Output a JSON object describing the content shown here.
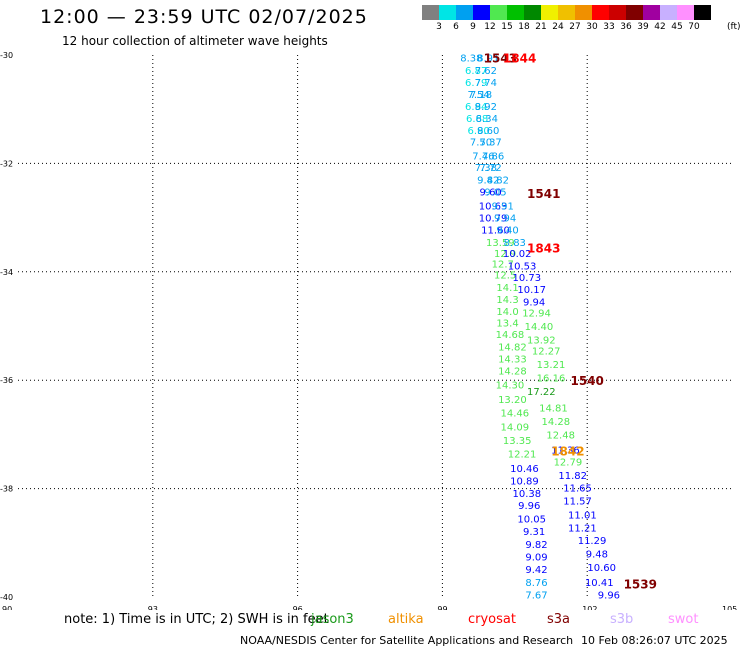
{
  "header": {
    "title": "12:00 — 23:59 UTC 02/07/2025",
    "subtitle": "12 hour collection of altimeter wave heights"
  },
  "color_scale": {
    "unit": "(ft)",
    "items": [
      {
        "label": "3",
        "color": "#808080"
      },
      {
        "label": "6",
        "color": "#00e5e5"
      },
      {
        "label": "9",
        "color": "#00a0f0"
      },
      {
        "label": "12",
        "color": "#0000ff"
      },
      {
        "label": "15",
        "color": "#50e850"
      },
      {
        "label": "18",
        "color": "#00c000"
      },
      {
        "label": "21",
        "color": "#008800"
      },
      {
        "label": "24",
        "color": "#f0f000"
      },
      {
        "label": "27",
        "color": "#f0c000"
      },
      {
        "label": "30",
        "color": "#f09000"
      },
      {
        "label": "33",
        "color": "#ff0000"
      },
      {
        "label": "36",
        "color": "#cc0000"
      },
      {
        "label": "39",
        "color": "#800000"
      },
      {
        "label": "42",
        "color": "#a000a0"
      },
      {
        "label": "45",
        "color": "#c8b0ff"
      },
      {
        "label": "70",
        "color": "#ff90ff"
      },
      {
        "label": "",
        "color": "#000000"
      }
    ]
  },
  "note": "note: 1) Time is in UTC; 2) SWH is in feet",
  "satellites": [
    {
      "name": "jason3",
      "color": "#1a9a1a"
    },
    {
      "name": "altika",
      "color": "#f09000"
    },
    {
      "name": "cryosat",
      "color": "#ff0000"
    },
    {
      "name": "s3a",
      "color": "#800000"
    },
    {
      "name": "s3b",
      "color": "#c8b0ff"
    },
    {
      "name": "swot",
      "color": "#ff90ff"
    }
  ],
  "footer": {
    "credit": "NOAA/NESDIS Center for Satellite Applications and Research",
    "generated": "10 Feb 08:26:07 UTC 2025"
  },
  "chart_data": {
    "type": "scatter",
    "title": "12:00 — 23:59 UTC 02/07/2025",
    "subtitle": "12 hour collection of altimeter wave heights",
    "xlabel": "",
    "ylabel": "",
    "xlim": [
      90,
      105
    ],
    "ylim": [
      -40,
      -30
    ],
    "x_ticks": [
      90,
      93,
      96,
      99,
      102,
      105
    ],
    "y_ticks": [
      -30,
      -32,
      -34,
      -36,
      -38,
      -40
    ],
    "grid": true,
    "time_labels": [
      {
        "text": "1543",
        "x": 100.2,
        "y": -30.05,
        "color": "#800000"
      },
      {
        "text": "1844",
        "x": 100.6,
        "y": -30.05,
        "color": "#ff0000"
      },
      {
        "text": "1541",
        "x": 101.1,
        "y": -32.55,
        "color": "#800000"
      },
      {
        "text": "1843",
        "x": 101.1,
        "y": -33.55,
        "color": "#ff0000"
      },
      {
        "text": "1540",
        "x": 102.0,
        "y": -36.0,
        "color": "#800000"
      },
      {
        "text": "1842",
        "x": 101.6,
        "y": -37.3,
        "color": "#f09000"
      },
      {
        "text": "1539",
        "x": 103.1,
        "y": -39.75,
        "color": "#800000"
      }
    ],
    "series": [
      {
        "name": "jason3",
        "values": [
          {
            "x": 99.6,
            "y": -30.05,
            "v": "8.38",
            "c": "#00a0f0"
          },
          {
            "x": 99.95,
            "y": -30.05,
            "v": "8.91",
            "c": "#00a0f0"
          },
          {
            "x": 99.7,
            "y": -30.28,
            "v": "6.87",
            "c": "#00e5e5"
          },
          {
            "x": 99.9,
            "y": -30.28,
            "v": "7.62",
            "c": "#00a0f0"
          },
          {
            "x": 99.7,
            "y": -30.5,
            "v": "6.79",
            "c": "#00e5e5"
          },
          {
            "x": 99.9,
            "y": -30.5,
            "v": "7.74",
            "c": "#00a0f0"
          },
          {
            "x": 99.75,
            "y": -30.72,
            "v": "7.54",
            "c": "#00a0f0"
          },
          {
            "x": 99.8,
            "y": -30.72,
            "v": "7.18",
            "c": "#00a0f0"
          },
          {
            "x": 99.7,
            "y": -30.94,
            "v": "6.94",
            "c": "#00e5e5"
          },
          {
            "x": 99.9,
            "y": -30.94,
            "v": "8.92",
            "c": "#00a0f0"
          },
          {
            "x": 99.72,
            "y": -31.16,
            "v": "6.68",
            "c": "#00e5e5"
          },
          {
            "x": 99.92,
            "y": -31.16,
            "v": "8.34",
            "c": "#00a0f0"
          },
          {
            "x": 99.75,
            "y": -31.38,
            "v": "6.90",
            "c": "#00e5e5"
          },
          {
            "x": 99.95,
            "y": -31.38,
            "v": "8.60",
            "c": "#00a0f0"
          },
          {
            "x": 99.8,
            "y": -31.6,
            "v": "7.50",
            "c": "#00a0f0"
          },
          {
            "x": 100.0,
            "y": -31.6,
            "v": "7.37",
            "c": "#00a0f0"
          },
          {
            "x": 99.85,
            "y": -31.85,
            "v": "7.46",
            "c": "#00a0f0"
          },
          {
            "x": 100.05,
            "y": -31.85,
            "v": "7.86",
            "c": "#00a0f0"
          },
          {
            "x": 99.9,
            "y": -32.07,
            "v": "7.38",
            "c": "#00a0f0"
          },
          {
            "x": 100.0,
            "y": -32.07,
            "v": "7.72",
            "c": "#00a0f0"
          },
          {
            "x": 99.95,
            "y": -32.3,
            "v": "9.42",
            "c": "#00a0f0"
          },
          {
            "x": 100.15,
            "y": -32.3,
            "v": "8.82",
            "c": "#00a0f0"
          },
          {
            "x": 100.0,
            "y": -32.52,
            "v": "9.60",
            "c": "#0000ff"
          },
          {
            "x": 100.1,
            "y": -32.52,
            "v": "9.05",
            "c": "#00a0f0"
          },
          {
            "x": 100.05,
            "y": -32.78,
            "v": "10.63",
            "c": "#0000ff"
          },
          {
            "x": 100.25,
            "y": -32.78,
            "v": "9.91",
            "c": "#00a0f0"
          },
          {
            "x": 100.05,
            "y": -33.0,
            "v": "10.79",
            "c": "#0000ff"
          },
          {
            "x": 100.3,
            "y": -33.0,
            "v": "9.94",
            "c": "#00a0f0"
          },
          {
            "x": 100.1,
            "y": -33.22,
            "v": "11.60",
            "c": "#0000ff"
          },
          {
            "x": 100.35,
            "y": -33.22,
            "v": "9.40",
            "c": "#00a0f0"
          },
          {
            "x": 100.2,
            "y": -33.45,
            "v": "13.59",
            "c": "#50e850"
          },
          {
            "x": 100.5,
            "y": -33.45,
            "v": "8.83",
            "c": "#00a0f0"
          },
          {
            "x": 100.3,
            "y": -33.65,
            "v": "12.9",
            "c": "#50e850"
          },
          {
            "x": 100.55,
            "y": -33.65,
            "v": "10.02",
            "c": "#0000ff"
          },
          {
            "x": 100.25,
            "y": -33.85,
            "v": "12.7",
            "c": "#50e850"
          },
          {
            "x": 100.65,
            "y": -33.88,
            "v": "10.53",
            "c": "#0000ff"
          },
          {
            "x": 100.3,
            "y": -34.05,
            "v": "12.5",
            "c": "#50e850"
          },
          {
            "x": 100.75,
            "y": -34.1,
            "v": "10.73",
            "c": "#0000ff"
          },
          {
            "x": 100.35,
            "y": -34.28,
            "v": "14.1",
            "c": "#50e850"
          },
          {
            "x": 100.85,
            "y": -34.32,
            "v": "10.17",
            "c": "#0000ff"
          },
          {
            "x": 100.35,
            "y": -34.5,
            "v": "14.3",
            "c": "#50e850"
          },
          {
            "x": 100.9,
            "y": -34.55,
            "v": "9.94",
            "c": "#0000ff"
          },
          {
            "x": 100.35,
            "y": -34.72,
            "v": "14.0",
            "c": "#50e850"
          },
          {
            "x": 100.95,
            "y": -34.75,
            "v": "12.94",
            "c": "#50e850"
          },
          {
            "x": 100.35,
            "y": -34.94,
            "v": "13.4",
            "c": "#50e850"
          },
          {
            "x": 101.0,
            "y": -35.0,
            "v": "14.40",
            "c": "#50e850"
          },
          {
            "x": 100.4,
            "y": -35.15,
            "v": "14.68",
            "c": "#50e850"
          },
          {
            "x": 101.05,
            "y": -35.25,
            "v": "13.92",
            "c": "#50e850"
          },
          {
            "x": 100.45,
            "y": -35.38,
            "v": "14.82",
            "c": "#50e850"
          },
          {
            "x": 101.15,
            "y": -35.45,
            "v": "12.27",
            "c": "#50e850"
          },
          {
            "x": 100.45,
            "y": -35.6,
            "v": "14.33",
            "c": "#50e850"
          },
          {
            "x": 101.25,
            "y": -35.7,
            "v": "13.21",
            "c": "#50e850"
          },
          {
            "x": 100.45,
            "y": -35.82,
            "v": "14.28",
            "c": "#50e850"
          },
          {
            "x": 101.25,
            "y": -35.95,
            "v": "16.16",
            "c": "#50e850"
          },
          {
            "x": 100.4,
            "y": -36.08,
            "v": "14.30",
            "c": "#50e850"
          },
          {
            "x": 101.05,
            "y": -36.2,
            "v": "17.22",
            "c": "#1a9a1a"
          },
          {
            "x": 100.45,
            "y": -36.35,
            "v": "13.20",
            "c": "#50e850"
          },
          {
            "x": 101.3,
            "y": -36.5,
            "v": "14.81",
            "c": "#50e850"
          },
          {
            "x": 100.5,
            "y": -36.6,
            "v": "14.46",
            "c": "#50e850"
          },
          {
            "x": 101.35,
            "y": -36.75,
            "v": "14.28",
            "c": "#50e850"
          },
          {
            "x": 100.5,
            "y": -36.85,
            "v": "14.09",
            "c": "#50e850"
          },
          {
            "x": 101.45,
            "y": -37.0,
            "v": "12.48",
            "c": "#50e850"
          },
          {
            "x": 100.55,
            "y": -37.1,
            "v": "13.35",
            "c": "#50e850"
          },
          {
            "x": 101.55,
            "y": -37.28,
            "v": "11.36",
            "c": "#0000ff"
          },
          {
            "x": 100.65,
            "y": -37.35,
            "v": "12.21",
            "c": "#50e850"
          },
          {
            "x": 101.6,
            "y": -37.5,
            "v": "12.79",
            "c": "#50e850"
          },
          {
            "x": 100.7,
            "y": -37.62,
            "v": "10.46",
            "c": "#0000ff"
          },
          {
            "x": 101.7,
            "y": -37.75,
            "v": "11.82",
            "c": "#0000ff"
          },
          {
            "x": 100.7,
            "y": -37.85,
            "v": "10.89",
            "c": "#0000ff"
          },
          {
            "x": 101.8,
            "y": -37.98,
            "v": "11.65",
            "c": "#0000ff"
          },
          {
            "x": 100.75,
            "y": -38.08,
            "v": "10.38",
            "c": "#0000ff"
          },
          {
            "x": 101.8,
            "y": -38.22,
            "v": "11.57",
            "c": "#0000ff"
          },
          {
            "x": 100.8,
            "y": -38.3,
            "v": "9.96",
            "c": "#0000ff"
          },
          {
            "x": 101.9,
            "y": -38.48,
            "v": "11.01",
            "c": "#0000ff"
          },
          {
            "x": 100.85,
            "y": -38.55,
            "v": "10.05",
            "c": "#0000ff"
          },
          {
            "x": 101.9,
            "y": -38.72,
            "v": "11.21",
            "c": "#0000ff"
          },
          {
            "x": 100.9,
            "y": -38.78,
            "v": "9.31",
            "c": "#0000ff"
          },
          {
            "x": 102.1,
            "y": -38.95,
            "v": "11.29",
            "c": "#0000ff"
          },
          {
            "x": 100.95,
            "y": -39.02,
            "v": "9.82",
            "c": "#0000ff"
          },
          {
            "x": 102.2,
            "y": -39.2,
            "v": "9.48",
            "c": "#0000ff"
          },
          {
            "x": 100.95,
            "y": -39.25,
            "v": "9.09",
            "c": "#0000ff"
          },
          {
            "x": 102.3,
            "y": -39.45,
            "v": "10.60",
            "c": "#0000ff"
          },
          {
            "x": 100.95,
            "y": -39.48,
            "v": "9.42",
            "c": "#0000ff"
          },
          {
            "x": 102.25,
            "y": -39.72,
            "v": "10.41",
            "c": "#0000ff"
          },
          {
            "x": 100.95,
            "y": -39.72,
            "v": "8.76",
            "c": "#00a0f0"
          },
          {
            "x": 102.45,
            "y": -39.95,
            "v": "9.96",
            "c": "#0000ff"
          },
          {
            "x": 100.95,
            "y": -39.95,
            "v": "7.67",
            "c": "#00a0f0"
          }
        ]
      }
    ]
  }
}
